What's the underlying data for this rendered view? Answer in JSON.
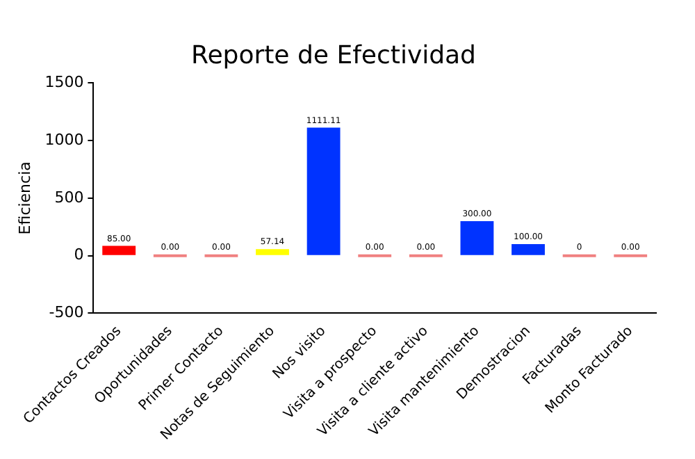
{
  "chart_data": {
    "type": "bar",
    "title": "Reporte de Efectividad",
    "ylabel": "Eficiencia",
    "categories": [
      "Contactos Creados",
      "Oportunidades",
      "Primer Contacto",
      "Notas de Seguimiento",
      "Nos visito",
      "Visita a prospecto",
      "Visita a cliente activo",
      "Visita mantenimiento",
      "Demostracion",
      "Facturadas",
      "Monto Facturado"
    ],
    "values": [
      85,
      0,
      0,
      57.14,
      1111.11,
      0,
      0,
      300,
      100,
      0,
      0
    ],
    "colors": [
      "#ff0000",
      "#f08080",
      "#f08080",
      "#ffff00",
      "#0033ff",
      "#f08080",
      "#f08080",
      "#0033ff",
      "#0033ff",
      "#f08080",
      "#f08080"
    ],
    "value_labels": [
      "85.00",
      "0.00",
      "0.00",
      "57.14",
      "1111.11",
      "0.00",
      "0.00",
      "300.00",
      "100.00",
      "0",
      "0.00"
    ],
    "ylim": [
      -500,
      1500
    ],
    "yticks": [
      -500,
      0,
      500,
      1000,
      1500
    ],
    "grid": false,
    "legend": false
  }
}
